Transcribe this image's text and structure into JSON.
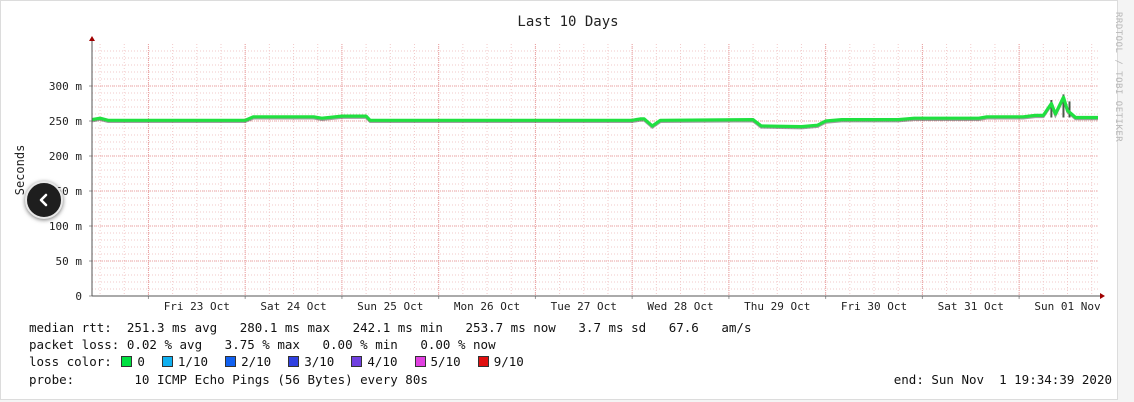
{
  "chart_data": {
    "type": "line",
    "title": "Last 10 Days",
    "ylabel": "Seconds",
    "side_label": "RRDTOOL / TOBI OETIKER",
    "ylim": [
      0,
      0.36
    ],
    "y_ticks": [
      {
        "value": 0,
        "label": "0"
      },
      {
        "value": 0.05,
        "label": "50 m"
      },
      {
        "value": 0.1,
        "label": "100 m"
      },
      {
        "value": 0.15,
        "label": "150 m"
      },
      {
        "value": 0.2,
        "label": "200 m"
      },
      {
        "value": 0.25,
        "label": "250 m"
      },
      {
        "value": 0.3,
        "label": "300 m"
      }
    ],
    "xlim": [
      "2020-10-22T10:00",
      "2020-11-01T19:34"
    ],
    "x_ticks": [
      {
        "day": "2020-10-23",
        "label": "Fri 23 Oct"
      },
      {
        "day": "2020-10-24",
        "label": "Sat 24 Oct"
      },
      {
        "day": "2020-10-25",
        "label": "Sun 25 Oct"
      },
      {
        "day": "2020-10-26",
        "label": "Mon 26 Oct"
      },
      {
        "day": "2020-10-27",
        "label": "Tue 27 Oct"
      },
      {
        "day": "2020-10-28",
        "label": "Wed 28 Oct"
      },
      {
        "day": "2020-10-29",
        "label": "Thu 29 Oct"
      },
      {
        "day": "2020-10-30",
        "label": "Fri 30 Oct"
      },
      {
        "day": "2020-10-31",
        "label": "Sat 31 Oct"
      },
      {
        "day": "2020-11-01",
        "label": "Sun 01 Nov"
      }
    ],
    "series": [
      {
        "color": "#20e040",
        "points": [
          [
            "2020-10-22T10:00",
            0.252
          ],
          [
            "2020-10-22T12:00",
            0.254
          ],
          [
            "2020-10-22T14:00",
            0.251
          ],
          [
            "2020-10-23T12:00",
            0.251
          ],
          [
            "2020-10-24T00:00",
            0.251
          ],
          [
            "2020-10-24T02:00",
            0.256
          ],
          [
            "2020-10-24T17:00",
            0.256
          ],
          [
            "2020-10-24T19:00",
            0.254
          ],
          [
            "2020-10-25T00:00",
            0.257
          ],
          [
            "2020-10-25T06:00",
            0.257
          ],
          [
            "2020-10-25T07:00",
            0.251
          ],
          [
            "2020-10-26T12:00",
            0.251
          ],
          [
            "2020-10-28T00:00",
            0.251
          ],
          [
            "2020-10-28T02:00",
            0.253
          ],
          [
            "2020-10-28T03:00",
            0.253
          ],
          [
            "2020-10-28T05:00",
            0.243
          ],
          [
            "2020-10-28T07:00",
            0.251
          ],
          [
            "2020-10-29T06:00",
            0.252
          ],
          [
            "2020-10-29T08:00",
            0.243
          ],
          [
            "2020-10-29T18:00",
            0.242
          ],
          [
            "2020-10-29T22:00",
            0.244
          ],
          [
            "2020-10-30T00:00",
            0.25
          ],
          [
            "2020-10-30T04:00",
            0.252
          ],
          [
            "2020-10-30T18:00",
            0.252
          ],
          [
            "2020-10-30T22:00",
            0.254
          ],
          [
            "2020-10-31T14:00",
            0.254
          ],
          [
            "2020-10-31T16:00",
            0.256
          ],
          [
            "2020-11-01T01:00",
            0.256
          ],
          [
            "2020-11-01T04:00",
            0.258
          ],
          [
            "2020-11-01T06:00",
            0.258
          ],
          [
            "2020-11-01T08:00",
            0.275
          ],
          [
            "2020-11-01T09:00",
            0.26
          ],
          [
            "2020-11-01T11:00",
            0.284
          ],
          [
            "2020-11-01T12:00",
            0.265
          ],
          [
            "2020-11-01T14:00",
            0.255
          ],
          [
            "2020-11-01T19:34",
            0.255
          ]
        ]
      }
    ],
    "grid": true
  },
  "legend": {
    "median_rtt_label": "median rtt:",
    "median_rtt_values": "251.3 ms avg   280.1 ms max   242.1 ms min   253.7 ms now   3.7 ms sd   67.6   am/s",
    "packet_loss_label": "packet loss:",
    "packet_loss_values": "0.02 % avg   3.75 % max   0.00 % min   0.00 % now",
    "loss_color_label": "loss color:",
    "loss_colors": [
      {
        "label": "0",
        "color": "#00e040"
      },
      {
        "label": "1/10",
        "color": "#10b0f0"
      },
      {
        "label": "2/10",
        "color": "#1060f0"
      },
      {
        "label": "3/10",
        "color": "#3040e0"
      },
      {
        "label": "4/10",
        "color": "#7040e0"
      },
      {
        "label": "5/10",
        "color": "#e040e0"
      },
      {
        "label": "9/10",
        "color": "#e01010"
      }
    ],
    "probe_label": "probe:",
    "probe_value": "10 ICMP Echo Pings (56 Bytes) every 80s",
    "end_text": "end: Sun Nov  1 19:34:39 2020"
  }
}
